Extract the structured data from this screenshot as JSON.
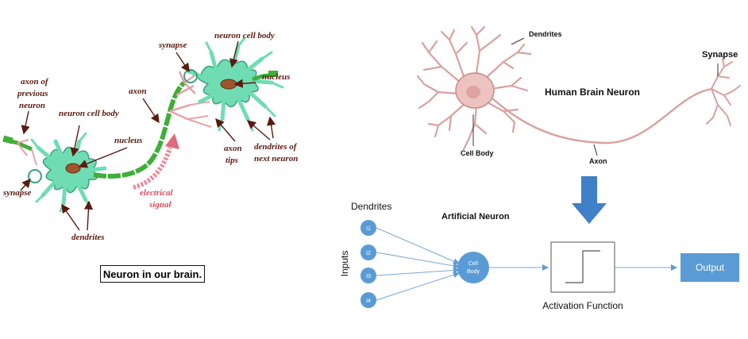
{
  "left_panel": {
    "caption": "Neuron in our brain.",
    "labels": {
      "axon_prev_1": "axon of",
      "axon_prev_2": "previous",
      "axon_prev_3": "neuron",
      "cell_body_1": "neuron cell body",
      "nucleus_1": "nucleus",
      "synapse_1": "synapse",
      "dendrites_1": "dendrites",
      "axon": "axon",
      "signal_1": "electrical",
      "signal_2": "signal",
      "synapse_2": "synapse",
      "cell_body_2": "neuron cell body",
      "nucleus_2": "nucleus",
      "axon_tips_1": "axon",
      "axon_tips_2": "tips",
      "next_dend_1": "dendrites of",
      "next_dend_2": "next neuron"
    }
  },
  "bio_neuron": {
    "dendrites": "Dendrites",
    "title": "Human Brain Neuron",
    "synapse": "Synapse",
    "cell_body": "Cell Body",
    "axon": "Axon"
  },
  "artificial": {
    "dendrites": "Dendrites",
    "title": "Artificial Neuron",
    "inputs_label": "Inputs",
    "inputs": [
      "I1",
      "I2",
      "I3",
      "I4"
    ],
    "cell_body_1": "Cell",
    "cell_body_2": "Body",
    "activation_label": "Activation Function",
    "output": "Output"
  },
  "colors": {
    "neuron_green": "#6fdcb4",
    "axon_green": "#3fae3a",
    "dendrite_pink": "#e6a3a6",
    "label_brown": "#5a1a10",
    "signal_red": "#d94a5a",
    "blue_node": "#5b9bd5",
    "arrow_blue": "#3f80c8"
  }
}
